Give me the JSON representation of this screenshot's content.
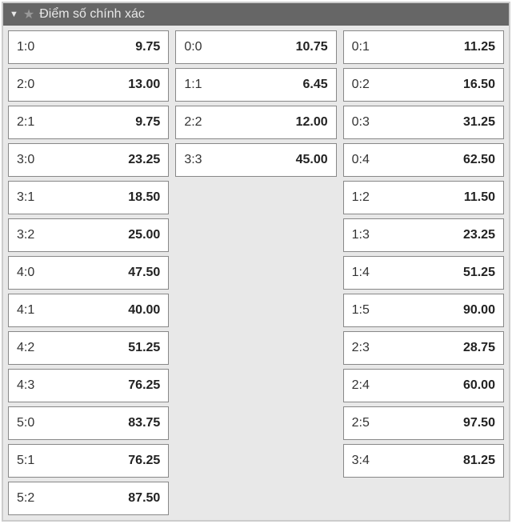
{
  "header": {
    "title": "Điểm số chính xác",
    "collapse_icon": "▼",
    "star_icon": "★"
  },
  "colors": {
    "header_bg": "#666666",
    "header_text": "#e8e8e8",
    "panel_bg": "#e8e8e8",
    "panel_border": "#cccccc",
    "cell_bg": "#ffffff",
    "cell_border": "#888888",
    "cell_text": "#333333",
    "odds_text": "#222222",
    "star_fill": "#999999"
  },
  "columns": [
    [
      {
        "score": "1:0",
        "odds": "9.75"
      },
      {
        "score": "2:0",
        "odds": "13.00"
      },
      {
        "score": "2:1",
        "odds": "9.75"
      },
      {
        "score": "3:0",
        "odds": "23.25"
      },
      {
        "score": "3:1",
        "odds": "18.50"
      },
      {
        "score": "3:2",
        "odds": "25.00"
      },
      {
        "score": "4:0",
        "odds": "47.50"
      },
      {
        "score": "4:1",
        "odds": "40.00"
      },
      {
        "score": "4:2",
        "odds": "51.25"
      },
      {
        "score": "4:3",
        "odds": "76.25"
      },
      {
        "score": "5:0",
        "odds": "83.75"
      },
      {
        "score": "5:1",
        "odds": "76.25"
      },
      {
        "score": "5:2",
        "odds": "87.50"
      }
    ],
    [
      {
        "score": "0:0",
        "odds": "10.75"
      },
      {
        "score": "1:1",
        "odds": "6.45"
      },
      {
        "score": "2:2",
        "odds": "12.00"
      },
      {
        "score": "3:3",
        "odds": "45.00"
      }
    ],
    [
      {
        "score": "0:1",
        "odds": "11.25"
      },
      {
        "score": "0:2",
        "odds": "16.50"
      },
      {
        "score": "0:3",
        "odds": "31.25"
      },
      {
        "score": "0:4",
        "odds": "62.50"
      },
      {
        "score": "1:2",
        "odds": "11.50"
      },
      {
        "score": "1:3",
        "odds": "23.25"
      },
      {
        "score": "1:4",
        "odds": "51.25"
      },
      {
        "score": "1:5",
        "odds": "90.00"
      },
      {
        "score": "2:3",
        "odds": "28.75"
      },
      {
        "score": "2:4",
        "odds": "60.00"
      },
      {
        "score": "2:5",
        "odds": "97.50"
      },
      {
        "score": "3:4",
        "odds": "81.25"
      }
    ]
  ]
}
